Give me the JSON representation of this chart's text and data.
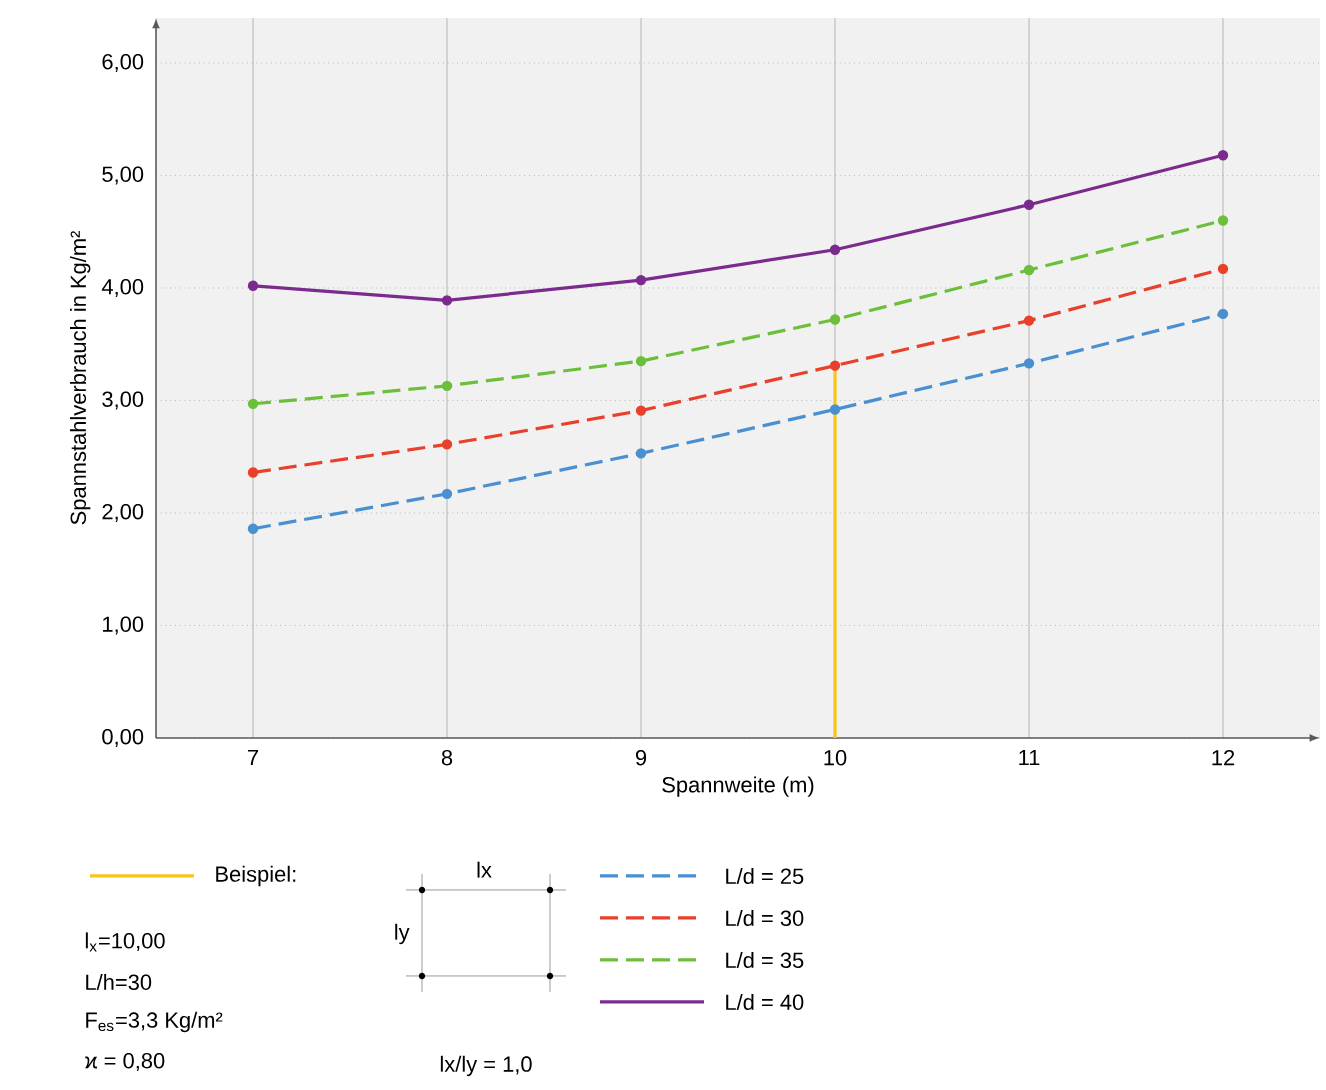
{
  "chart_data": {
    "type": "line",
    "xlabel": "Spannweite (m)",
    "ylabel": "Spannstahlverbrauch in Kg/m²",
    "x": [
      7,
      8,
      9,
      10,
      11,
      12
    ],
    "series": [
      {
        "name": "Beispiel:",
        "color": "#f5c518",
        "x": [
          10,
          10
        ],
        "values": [
          0,
          3.3
        ],
        "marker": "none",
        "line_style": "solid"
      },
      {
        "name": "L/d = 25",
        "color": "#4a90d0",
        "values": [
          1.86,
          2.17,
          2.53,
          2.92,
          3.33,
          3.77
        ],
        "line_style": "dashed"
      },
      {
        "name": "L/d = 30",
        "color": "#e8402a",
        "values": [
          2.36,
          2.61,
          2.91,
          3.31,
          3.71,
          4.17
        ],
        "line_style": "dashed"
      },
      {
        "name": "L/d = 35",
        "color": "#6cbf3a",
        "values": [
          2.97,
          3.13,
          3.35,
          3.72,
          4.16,
          4.6
        ],
        "line_style": "dashed"
      },
      {
        "name": "L/d = 40",
        "color": "#7b2a8e",
        "values": [
          4.02,
          3.89,
          4.07,
          4.34,
          4.74,
          5.18
        ],
        "line_style": "solid"
      }
    ],
    "xlim": [
      6.5,
      12.5
    ],
    "ylim": [
      0,
      6.4
    ],
    "xticks": [
      7,
      8,
      9,
      10,
      11,
      12
    ],
    "yticks": [
      {
        "value": 0,
        "label": "0,00"
      },
      {
        "value": 1,
        "label": "1,00"
      },
      {
        "value": 2,
        "label": "2,00"
      },
      {
        "value": 3,
        "label": "3,00"
      },
      {
        "value": 4,
        "label": "4,00"
      },
      {
        "value": 5,
        "label": "5,00"
      },
      {
        "value": 6,
        "label": "6,00"
      }
    ],
    "grid": true,
    "legend": "bottom",
    "marker": "circle",
    "annotations": [
      "l$_{x}$=10,00",
      "L/h=30",
      "F$_{es}$=3,3 Kg/m²",
      "ϰ = 0,80",
      "lx",
      "ly",
      "lx/ly = 1,0"
    ]
  }
}
